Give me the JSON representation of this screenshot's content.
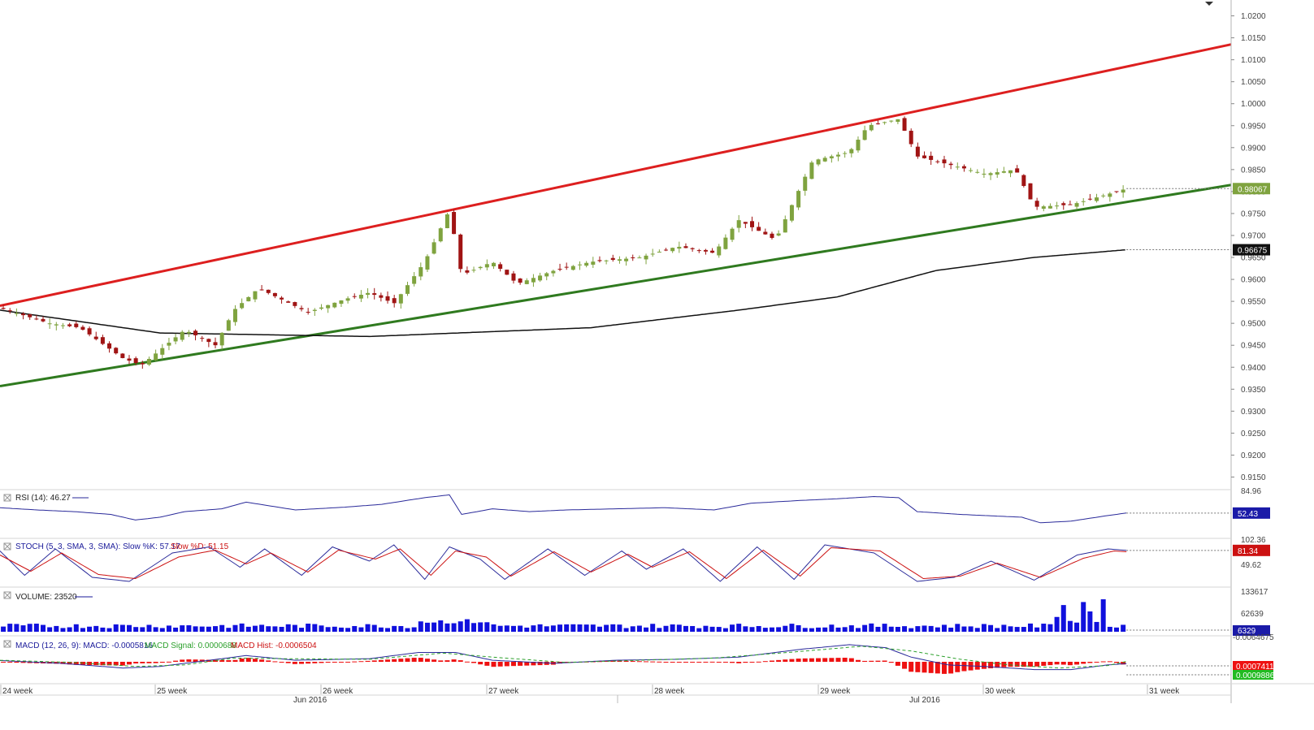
{
  "chart_data": {
    "type": "candlestick",
    "x_label_rows": {
      "weeks": [
        "24 week",
        "25 week",
        "26 week",
        "27 week",
        "28 week",
        "29 week",
        "30 week",
        "31 week"
      ],
      "months": [
        "Jun 2016",
        "Jul 2016"
      ]
    },
    "price_axis": {
      "ylim": [
        0.9125,
        1.0225
      ],
      "ticks": [
        "1.0200",
        "1.0150",
        "1.0100",
        "1.0050",
        "1.0000",
        "0.9950",
        "0.9900",
        "0.9850",
        "0.9800",
        "0.9750",
        "0.9700",
        "0.9650",
        "0.9600",
        "0.9550",
        "0.9500",
        "0.9450",
        "0.9400",
        "0.9350",
        "0.9300",
        "0.9250",
        "0.9200",
        "0.9150"
      ],
      "last_price": "0.98067",
      "last_price_value": 0.98067,
      "ma_value": "0.96675",
      "ma_value_num": 0.96675
    },
    "trendlines": [
      {
        "name": "upper-channel",
        "color": "#dd1f1f",
        "from": [
          0,
          0.954
        ],
        "to": [
          1.0,
          1.0135
        ]
      },
      {
        "name": "lower-channel",
        "color": "#2f7a1f",
        "from": [
          0,
          0.9357
        ],
        "to": [
          1.0,
          0.9815
        ]
      }
    ],
    "moving_average_anchors": [
      [
        0,
        0.953
      ],
      [
        0.13,
        0.9478
      ],
      [
        0.3,
        0.947
      ],
      [
        0.48,
        0.949
      ],
      [
        0.6,
        0.953
      ],
      [
        0.68,
        0.956
      ],
      [
        0.76,
        0.962
      ],
      [
        0.84,
        0.965
      ],
      [
        0.915,
        0.96675
      ]
    ],
    "price_anchors": [
      [
        0,
        0.9535
      ],
      [
        0.04,
        0.95
      ],
      [
        0.065,
        0.949
      ],
      [
        0.1,
        0.942
      ],
      [
        0.115,
        0.9405
      ],
      [
        0.15,
        0.9485
      ],
      [
        0.175,
        0.945
      ],
      [
        0.19,
        0.953
      ],
      [
        0.21,
        0.958
      ],
      [
        0.25,
        0.9525
      ],
      [
        0.28,
        0.9555
      ],
      [
        0.3,
        0.957
      ],
      [
        0.32,
        0.9545
      ],
      [
        0.345,
        0.964
      ],
      [
        0.365,
        0.9758
      ],
      [
        0.375,
        0.961
      ],
      [
        0.4,
        0.964
      ],
      [
        0.42,
        0.959
      ],
      [
        0.45,
        0.962
      ],
      [
        0.48,
        0.964
      ],
      [
        0.52,
        0.965
      ],
      [
        0.55,
        0.9675
      ],
      [
        0.58,
        0.966
      ],
      [
        0.6,
        0.9735
      ],
      [
        0.63,
        0.969
      ],
      [
        0.66,
        0.987
      ],
      [
        0.69,
        0.989
      ],
      [
        0.705,
        0.995
      ],
      [
        0.73,
        0.9965
      ],
      [
        0.745,
        0.988
      ],
      [
        0.78,
        0.9855
      ],
      [
        0.8,
        0.984
      ],
      [
        0.825,
        0.985
      ],
      [
        0.84,
        0.9765
      ],
      [
        0.87,
        0.977
      ],
      [
        0.895,
        0.979
      ],
      [
        0.915,
        0.98067
      ]
    ],
    "indicators": [
      {
        "name": "RSI",
        "title": "RSI (14): 46.27",
        "color": "#2a2a9a",
        "ticks": [
          "84.96"
        ],
        "last": "52.43",
        "last_value": 52.43,
        "ylim": [
          10,
          90
        ],
        "anchors": [
          [
            0,
            62
          ],
          [
            0.03,
            58
          ],
          [
            0.06,
            55
          ],
          [
            0.09,
            50
          ],
          [
            0.11,
            40
          ],
          [
            0.13,
            45
          ],
          [
            0.15,
            55
          ],
          [
            0.18,
            60
          ],
          [
            0.2,
            72
          ],
          [
            0.24,
            58
          ],
          [
            0.28,
            63
          ],
          [
            0.31,
            68
          ],
          [
            0.345,
            80
          ],
          [
            0.365,
            85
          ],
          [
            0.375,
            50
          ],
          [
            0.4,
            60
          ],
          [
            0.43,
            55
          ],
          [
            0.46,
            58
          ],
          [
            0.5,
            60
          ],
          [
            0.54,
            62
          ],
          [
            0.58,
            58
          ],
          [
            0.61,
            70
          ],
          [
            0.65,
            75
          ],
          [
            0.68,
            78
          ],
          [
            0.71,
            82
          ],
          [
            0.73,
            80
          ],
          [
            0.745,
            55
          ],
          [
            0.78,
            50
          ],
          [
            0.8,
            48
          ],
          [
            0.83,
            45
          ],
          [
            0.845,
            35
          ],
          [
            0.87,
            38
          ],
          [
            0.9,
            48
          ],
          [
            0.915,
            52.43
          ]
        ]
      },
      {
        "name": "STOCH",
        "title_k": "STOCH (5, 3, SMA, 3, SMA): Slow %K: 57.17",
        "title_d": "Slow %D: 51.15",
        "color_k": "#2a2a9a",
        "color_d": "#cc1111",
        "ticks": [
          "102.36",
          "49.62"
        ],
        "last": "81.34",
        "last_value": 81.34,
        "ylim": [
          -5,
          105
        ],
        "anchors_k": [
          [
            0,
            80
          ],
          [
            0.02,
            20
          ],
          [
            0.045,
            85
          ],
          [
            0.075,
            15
          ],
          [
            0.105,
            5
          ],
          [
            0.14,
            75
          ],
          [
            0.17,
            90
          ],
          [
            0.195,
            40
          ],
          [
            0.215,
            85
          ],
          [
            0.245,
            20
          ],
          [
            0.27,
            90
          ],
          [
            0.3,
            55
          ],
          [
            0.32,
            95
          ],
          [
            0.345,
            10
          ],
          [
            0.365,
            90
          ],
          [
            0.39,
            60
          ],
          [
            0.41,
            10
          ],
          [
            0.445,
            85
          ],
          [
            0.475,
            20
          ],
          [
            0.505,
            80
          ],
          [
            0.525,
            35
          ],
          [
            0.555,
            85
          ],
          [
            0.585,
            5
          ],
          [
            0.615,
            90
          ],
          [
            0.645,
            10
          ],
          [
            0.67,
            95
          ],
          [
            0.71,
            75
          ],
          [
            0.745,
            5
          ],
          [
            0.775,
            15
          ],
          [
            0.805,
            55
          ],
          [
            0.84,
            8
          ],
          [
            0.875,
            70
          ],
          [
            0.9,
            85
          ],
          [
            0.915,
            81.34
          ]
        ],
        "anchors_d": [
          [
            0,
            70
          ],
          [
            0.025,
            30
          ],
          [
            0.05,
            75
          ],
          [
            0.08,
            22
          ],
          [
            0.11,
            12
          ],
          [
            0.145,
            65
          ],
          [
            0.175,
            82
          ],
          [
            0.2,
            48
          ],
          [
            0.22,
            75
          ],
          [
            0.25,
            28
          ],
          [
            0.275,
            82
          ],
          [
            0.305,
            60
          ],
          [
            0.325,
            85
          ],
          [
            0.35,
            20
          ],
          [
            0.37,
            80
          ],
          [
            0.395,
            65
          ],
          [
            0.415,
            18
          ],
          [
            0.45,
            78
          ],
          [
            0.48,
            28
          ],
          [
            0.51,
            72
          ],
          [
            0.53,
            40
          ],
          [
            0.56,
            78
          ],
          [
            0.59,
            12
          ],
          [
            0.62,
            82
          ],
          [
            0.65,
            18
          ],
          [
            0.675,
            88
          ],
          [
            0.715,
            80
          ],
          [
            0.75,
            12
          ],
          [
            0.78,
            18
          ],
          [
            0.81,
            50
          ],
          [
            0.845,
            15
          ],
          [
            0.88,
            62
          ],
          [
            0.905,
            80
          ],
          [
            0.915,
            78
          ]
        ]
      },
      {
        "name": "VOLUME",
        "title": "VOLUME: 23520",
        "color": "#1010dd",
        "ticks": [
          "133617",
          "62639"
        ],
        "last": "6329",
        "last_value": 6329,
        "ymax": 140000
      },
      {
        "name": "MACD",
        "title_macd": "MACD (12, 26, 9): MACD: -0.0005816",
        "title_signal": "MACD Signal: 0.0000688",
        "title_hist": "MACD Hist: -0.0006504",
        "color_macd": "#2a2a9a",
        "color_signal": "#2ca02c",
        "color_hist": "#ee1111",
        "ticks": [
          "-0.0064675"
        ],
        "last_hist": "0.0007411",
        "last_signal": "0.0009886",
        "ylim": [
          -0.006,
          0.006
        ],
        "anchors_macd": [
          [
            0,
            0.0004
          ],
          [
            0.05,
            -0.0005
          ],
          [
            0.1,
            -0.002
          ],
          [
            0.13,
            -0.0015
          ],
          [
            0.17,
            0.0005
          ],
          [
            0.2,
            0.002
          ],
          [
            0.24,
            0.0005
          ],
          [
            0.3,
            0.001
          ],
          [
            0.34,
            0.003
          ],
          [
            0.37,
            0.003
          ],
          [
            0.4,
            0.0005
          ],
          [
            0.45,
            -0.0005
          ],
          [
            0.5,
            0.0005
          ],
          [
            0.55,
            0.0008
          ],
          [
            0.6,
            0.0015
          ],
          [
            0.65,
            0.004
          ],
          [
            0.69,
            0.0055
          ],
          [
            0.72,
            0.0045
          ],
          [
            0.74,
            0.0015
          ],
          [
            0.77,
            -0.001
          ],
          [
            0.8,
            -0.0015
          ],
          [
            0.84,
            -0.0025
          ],
          [
            0.87,
            -0.0025
          ],
          [
            0.9,
            -0.001
          ],
          [
            0.915,
            -0.0006
          ]
        ],
        "anchors_signal": [
          [
            0,
            0.0005
          ],
          [
            0.06,
            -0.0002
          ],
          [
            0.11,
            -0.0015
          ],
          [
            0.15,
            -0.001
          ],
          [
            0.19,
            0.0012
          ],
          [
            0.23,
            0.001
          ],
          [
            0.3,
            0.0008
          ],
          [
            0.36,
            0.0028
          ],
          [
            0.41,
            0.0012
          ],
          [
            0.46,
            -0.0002
          ],
          [
            0.52,
            0.0005
          ],
          [
            0.58,
            0.0012
          ],
          [
            0.64,
            0.003
          ],
          [
            0.7,
            0.005
          ],
          [
            0.74,
            0.0035
          ],
          [
            0.78,
            0.0008
          ],
          [
            0.82,
            -0.001
          ],
          [
            0.86,
            -0.002
          ],
          [
            0.9,
            -0.0012
          ],
          [
            0.915,
            0.0001
          ]
        ]
      }
    ]
  }
}
